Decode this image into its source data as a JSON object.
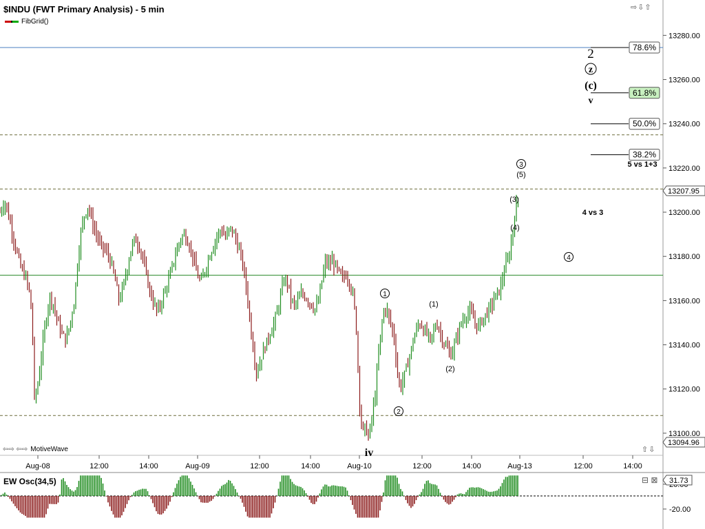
{
  "header": {
    "title": "$INDU (FWT Primary Analysis) - 5 min",
    "study": "FibGrid()"
  },
  "footer": {
    "brand": "MotiveWave"
  },
  "x_axis_labels": [
    "Aug-08",
    "12:00",
    "14:00",
    "Aug-09",
    "12:00",
    "14:00",
    "Aug-10",
    "12:00",
    "14:00",
    "Aug-13",
    "12:00",
    "14:00"
  ],
  "price_axis": {
    "ticks": [
      "13280.00",
      "13260.00",
      "13240.00",
      "13220.00",
      "13200.00",
      "13180.00",
      "13160.00",
      "13140.00",
      "13120.00",
      "13100.00"
    ],
    "current_price": "13207.95",
    "low_price": "13094.96"
  },
  "fib_levels": [
    {
      "label": "78.6%",
      "price": 13274.5,
      "highlight": false
    },
    {
      "label": "61.8%",
      "price": 13254,
      "highlight": true
    },
    {
      "label": "50.0%",
      "price": 13240,
      "highlight": false
    },
    {
      "label": "38.2%",
      "price": 13226,
      "highlight": false
    }
  ],
  "annotations": {
    "wave_labels": [
      "2",
      "z",
      "(c)",
      "v",
      "iv",
      "1",
      "2",
      "(1)",
      "(2)",
      "(3)",
      "(4)",
      "3",
      "(5)",
      "4"
    ],
    "notes": [
      "5 vs 1+3",
      "4 vs 3"
    ]
  },
  "oscillator": {
    "title": "EW Osc(34,5)",
    "value": "31.73",
    "ticks": [
      "20.00",
      "-20.00"
    ]
  },
  "colors": {
    "up": "#1e8c1e",
    "down": "#8b1a1a",
    "green_line": "#2e8b2e",
    "blue_line": "#4a7fc1",
    "fib_highlight": "#c8f0c0"
  },
  "chart_data": {
    "type": "candlestick",
    "title": "$INDU (FWT Primary Analysis) - 5 min",
    "ylim": [
      13090,
      13296
    ],
    "green_hline": 13171.5,
    "blue_hline": 13274.5,
    "dashed_hlines": [
      13235,
      13210.5,
      13108
    ],
    "close_path": [
      [
        0,
        13200
      ],
      [
        7,
        13205
      ],
      [
        15,
        13195
      ],
      [
        22,
        13185
      ],
      [
        30,
        13175
      ],
      [
        38,
        13170
      ],
      [
        44,
        13162
      ],
      [
        48,
        13140
      ],
      [
        50,
        13115
      ],
      [
        55,
        13122
      ],
      [
        60,
        13135
      ],
      [
        66,
        13150
      ],
      [
        72,
        13162
      ],
      [
        78,
        13158
      ],
      [
        84,
        13150
      ],
      [
        90,
        13145
      ],
      [
        96,
        13142
      ],
      [
        102,
        13150
      ],
      [
        108,
        13160
      ],
      [
        112,
        13175
      ],
      [
        117,
        13190
      ],
      [
        122,
        13198
      ],
      [
        128,
        13203
      ],
      [
        134,
        13195
      ],
      [
        140,
        13190
      ],
      [
        146,
        13185
      ],
      [
        152,
        13183
      ],
      [
        158,
        13180
      ],
      [
        163,
        13175
      ],
      [
        168,
        13168
      ],
      [
        173,
        13160
      ],
      [
        178,
        13165
      ],
      [
        183,
        13172
      ],
      [
        190,
        13183
      ],
      [
        196,
        13188
      ],
      [
        202,
        13185
      ],
      [
        207,
        13180
      ],
      [
        212,
        13172
      ],
      [
        217,
        13165
      ],
      [
        222,
        13160
      ],
      [
        228,
        13155
      ],
      [
        233,
        13158
      ],
      [
        238,
        13163
      ],
      [
        244,
        13168
      ],
      [
        250,
        13175
      ],
      [
        256,
        13182
      ],
      [
        262,
        13188
      ],
      [
        268,
        13190
      ],
      [
        274,
        13186
      ],
      [
        280,
        13180
      ],
      [
        286,
        13172
      ],
      [
        292,
        13168
      ],
      [
        298,
        13174
      ],
      [
        304,
        13180
      ],
      [
        310,
        13185
      ],
      [
        316,
        13190
      ],
      [
        322,
        13192
      ],
      [
        328,
        13188
      ],
      [
        334,
        13193
      ],
      [
        340,
        13190
      ],
      [
        345,
        13185
      ],
      [
        350,
        13180
      ],
      [
        355,
        13172
      ],
      [
        360,
        13160
      ],
      [
        364,
        13148
      ],
      [
        368,
        13138
      ],
      [
        372,
        13128
      ],
      [
        376,
        13130
      ],
      [
        381,
        13136
      ],
      [
        386,
        13140
      ],
      [
        392,
        13145
      ],
      [
        398,
        13150
      ],
      [
        403,
        13155
      ],
      [
        408,
        13163
      ],
      [
        413,
        13170
      ],
      [
        418,
        13168
      ],
      [
        423,
        13160
      ],
      [
        428,
        13158
      ],
      [
        433,
        13160
      ],
      [
        438,
        13163
      ],
      [
        443,
        13162
      ],
      [
        448,
        13160
      ],
      [
        453,
        13158
      ],
      [
        458,
        13156
      ],
      [
        463,
        13160
      ],
      [
        468,
        13170
      ],
      [
        473,
        13178
      ],
      [
        478,
        13176
      ],
      [
        483,
        13178
      ],
      [
        488,
        13175
      ],
      [
        493,
        13172
      ],
      [
        498,
        13170
      ],
      [
        503,
        13172
      ],
      [
        508,
        13168
      ],
      [
        513,
        13162
      ],
      [
        517,
        13150
      ],
      [
        520,
        13130
      ],
      [
        523,
        13110
      ],
      [
        527,
        13100
      ],
      [
        531,
        13103
      ],
      [
        535,
        13098
      ],
      [
        540,
        13106
      ],
      [
        545,
        13118
      ],
      [
        549,
        13133
      ],
      [
        553,
        13145
      ],
      [
        557,
        13155
      ],
      [
        561,
        13157
      ],
      [
        565,
        13152
      ],
      [
        569,
        13148
      ],
      [
        573,
        13142
      ],
      [
        577,
        13128
      ],
      [
        581,
        13120
      ],
      [
        586,
        13125
      ],
      [
        591,
        13130
      ],
      [
        596,
        13136
      ],
      [
        601,
        13143
      ],
      [
        606,
        13148
      ],
      [
        611,
        13150
      ],
      [
        616,
        13146
      ],
      [
        620,
        13145
      ],
      [
        625,
        13142
      ],
      [
        630,
        13146
      ],
      [
        634,
        13150
      ],
      [
        638,
        13147
      ],
      [
        642,
        13143
      ],
      [
        646,
        13140
      ],
      [
        650,
        13138
      ],
      [
        654,
        13135
      ],
      [
        658,
        13138
      ],
      [
        662,
        13142
      ],
      [
        666,
        13146
      ],
      [
        670,
        13150
      ],
      [
        674,
        13152
      ],
      [
        678,
        13154
      ],
      [
        682,
        13155
      ],
      [
        686,
        13153
      ],
      [
        690,
        13150
      ],
      [
        694,
        13148
      ],
      [
        698,
        13150
      ],
      [
        702,
        13152
      ],
      [
        706,
        13154
      ],
      [
        710,
        13156
      ],
      [
        714,
        13158
      ],
      [
        718,
        13161
      ],
      [
        722,
        13163
      ],
      [
        726,
        13165
      ],
      [
        730,
        13170
      ],
      [
        734,
        13176
      ],
      [
        738,
        13178
      ],
      [
        742,
        13185
      ],
      [
        746,
        13195
      ],
      [
        750,
        13203
      ],
      [
        754,
        13208
      ]
    ]
  }
}
